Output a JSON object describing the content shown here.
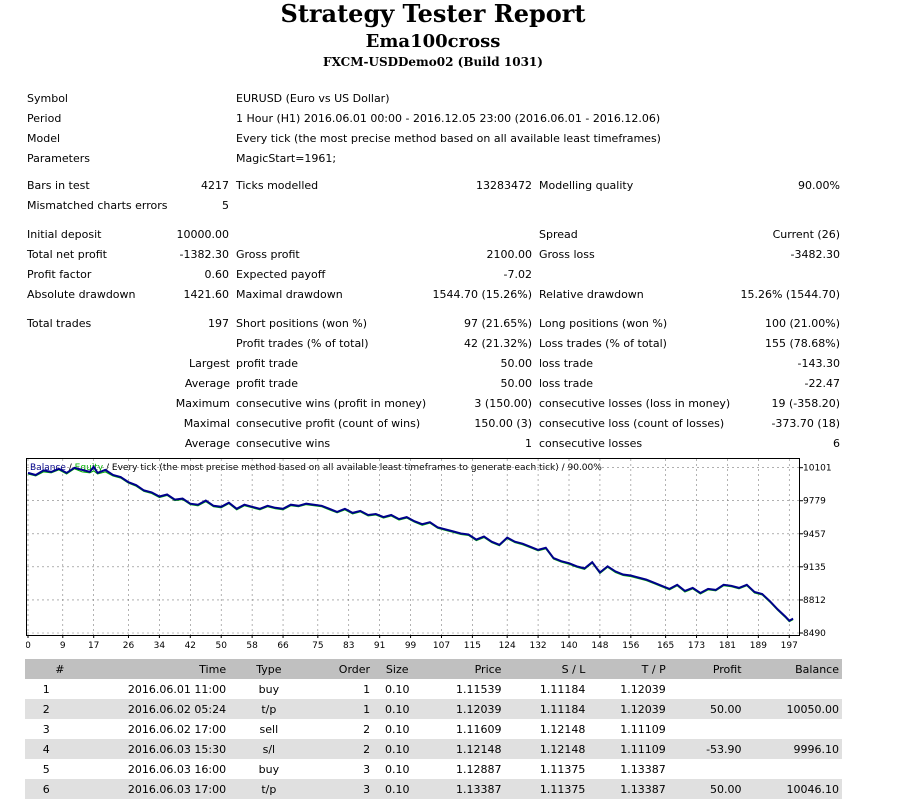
{
  "report": {
    "title": "Strategy Tester Report",
    "expert": "Ema100cross",
    "server": "FXCM-USDDemo02 (Build 1031)"
  },
  "info": [
    {
      "label": "Symbol",
      "value": "EURUSD (Euro vs US Dollar)"
    },
    {
      "label": "Period",
      "value": "1 Hour (H1) 2016.06.01 00:00 - 2016.12.05 23:00 (2016.06.01 - 2016.12.06)"
    },
    {
      "label": "Model",
      "value": "Every tick (the most precise method based on all available least timeframes)"
    },
    {
      "label": "Parameters",
      "value": "MagicStart=1961;"
    }
  ],
  "stats": {
    "bars_label": "Bars in test",
    "bars_value": "4217",
    "ticks_label": "Ticks modelled",
    "ticks_value": "13283472",
    "quality_label": "Modelling quality",
    "quality_value": "90.00%",
    "mismatch_label": "Mismatched charts errors",
    "mismatch_value": "5",
    "deposit_label": "Initial deposit",
    "deposit_value": "10000.00",
    "spread_label": "Spread",
    "spread_value": "Current (26)",
    "netprofit_label": "Total net profit",
    "netprofit_value": "-1382.30",
    "grossprofit_label": "Gross profit",
    "grossprofit_value": "2100.00",
    "grossloss_label": "Gross loss",
    "grossloss_value": "-3482.30",
    "pf_label": "Profit factor",
    "pf_value": "0.60",
    "payoff_label": "Expected payoff",
    "payoff_value": "-7.02",
    "absdd_label": "Absolute drawdown",
    "absdd_value": "1421.60",
    "maxdd_label": "Maximal drawdown",
    "maxdd_value": "1544.70 (15.26%)",
    "reldd_label": "Relative drawdown",
    "reldd_value": "15.26% (1544.70)",
    "trades_label": "Total trades",
    "trades_value": "197",
    "short_label": "Short positions (won %)",
    "short_value": "97 (21.65%)",
    "long_label": "Long positions (won %)",
    "long_value": "100 (21.00%)",
    "pt_label": "Profit trades (% of total)",
    "pt_value": "42 (21.32%)",
    "lt_label": "Loss trades (% of total)",
    "lt_value": "155 (78.68%)",
    "largest_label": "Largest",
    "largest_profit_label": "profit trade",
    "largest_profit_value": "50.00",
    "largest_loss_label": "loss trade",
    "largest_loss_value": "-143.30",
    "average_label": "Average",
    "average_profit_label": "profit trade",
    "average_profit_value": "50.00",
    "average_loss_label": "loss trade",
    "average_loss_value": "-22.47",
    "maximum_label": "Maximum",
    "max_cw_label": "consecutive wins (profit in money)",
    "max_cw_value": "3 (150.00)",
    "max_cl_label": "consecutive losses (loss in money)",
    "max_cl_value": "19 (-358.20)",
    "maximal_label": "Maximal",
    "mxl_cp_label": "consecutive profit (count of wins)",
    "mxl_cp_value": "150.00 (3)",
    "mxl_cl_label": "consecutive loss (count of losses)",
    "mxl_cl_value": "-373.70 (18)",
    "average2_label": "Average",
    "avg_cw_label": "consecutive wins",
    "avg_cw_value": "1",
    "avg_cl_label": "consecutive losses",
    "avg_cl_value": "6"
  },
  "chart_data": {
    "type": "line",
    "legend_balance": "Balance",
    "legend_sep": " / ",
    "legend_equity": "Equity",
    "legend_rest": " / Every tick (the most precise method based on all available least timeframes to generate each tick) / 90.00%",
    "colors": {
      "balance": "#00008b",
      "equity": "#00b000",
      "grid": "#808080"
    },
    "xticks": [
      "0",
      "9",
      "17",
      "26",
      "34",
      "42",
      "50",
      "58",
      "66",
      "75",
      "83",
      "91",
      "99",
      "107",
      "115",
      "124",
      "132",
      "140",
      "148",
      "156",
      "165",
      "173",
      "181",
      "189",
      "197"
    ],
    "yticks": [
      "10101",
      "9779",
      "9457",
      "9135",
      "8812",
      "8490"
    ],
    "ylim": [
      8490,
      10176
    ],
    "xlim": [
      0,
      199
    ],
    "grid": true,
    "x": [
      0,
      2,
      4,
      6,
      8,
      10,
      12,
      14,
      16,
      17,
      18,
      20,
      22,
      24,
      26,
      28,
      30,
      32,
      34,
      36,
      38,
      40,
      42,
      44,
      46,
      48,
      50,
      52,
      54,
      56,
      58,
      60,
      62,
      64,
      66,
      68,
      70,
      72,
      74,
      76,
      78,
      80,
      82,
      84,
      86,
      88,
      90,
      92,
      94,
      96,
      98,
      100,
      102,
      104,
      106,
      108,
      110,
      112,
      114,
      116,
      118,
      120,
      122,
      124,
      126,
      128,
      130,
      132,
      134,
      136,
      138,
      140,
      142,
      144,
      146,
      148,
      150,
      152,
      154,
      156,
      158,
      160,
      162,
      164,
      166,
      168,
      170,
      172,
      174,
      176,
      178,
      180,
      182,
      184,
      186,
      188,
      190,
      192,
      194,
      196,
      197,
      198
    ],
    "balance": [
      10050,
      10030,
      10075,
      10060,
      10090,
      10050,
      10100,
      10080,
      10060,
      10110,
      10050,
      10080,
      10030,
      10010,
      9960,
      9930,
      9880,
      9860,
      9820,
      9840,
      9790,
      9800,
      9750,
      9740,
      9780,
      9730,
      9720,
      9760,
      9700,
      9740,
      9720,
      9700,
      9730,
      9710,
      9700,
      9740,
      9730,
      9750,
      9740,
      9730,
      9700,
      9670,
      9700,
      9660,
      9680,
      9640,
      9650,
      9620,
      9640,
      9600,
      9620,
      9580,
      9550,
      9570,
      9520,
      9500,
      9480,
      9460,
      9450,
      9400,
      9430,
      9380,
      9350,
      9420,
      9380,
      9360,
      9330,
      9300,
      9320,
      9220,
      9190,
      9170,
      9140,
      9120,
      9180,
      9080,
      9140,
      9090,
      9060,
      9050,
      9030,
      9010,
      8980,
      8950,
      8920,
      8960,
      8900,
      8930,
      8880,
      8920,
      8910,
      8960,
      8950,
      8930,
      8960,
      8890,
      8870,
      8800,
      8720,
      8650,
      8610,
      8630
    ],
    "equity": [
      10040,
      10020,
      10060,
      10050,
      10080,
      10040,
      10090,
      10060,
      10050,
      10070,
      10040,
      10060,
      10020,
      10000,
      9950,
      9920,
      9870,
      9850,
      9810,
      9830,
      9780,
      9790,
      9740,
      9730,
      9770,
      9720,
      9710,
      9750,
      9690,
      9730,
      9710,
      9690,
      9720,
      9700,
      9690,
      9730,
      9720,
      9740,
      9730,
      9720,
      9690,
      9660,
      9690,
      9650,
      9670,
      9630,
      9640,
      9610,
      9630,
      9590,
      9610,
      9570,
      9540,
      9560,
      9510,
      9490,
      9470,
      9450,
      9440,
      9390,
      9420,
      9370,
      9340,
      9410,
      9370,
      9350,
      9320,
      9290,
      9310,
      9210,
      9180,
      9160,
      9130,
      9110,
      9170,
      9070,
      9130,
      9080,
      9050,
      9040,
      9020,
      9000,
      8970,
      8940,
      8910,
      8950,
      8890,
      8920,
      8870,
      8910,
      8900,
      8950,
      8940,
      8920,
      8950,
      8880,
      8860,
      8790,
      8710,
      8640,
      8600,
      8620
    ]
  },
  "table": {
    "headers": [
      "#",
      "Time",
      "Type",
      "Order",
      "Size",
      "Price",
      "S / L",
      "T / P",
      "Profit",
      "Balance"
    ],
    "rows": [
      [
        "1",
        "2016.06.01 11:00",
        "buy",
        "1",
        "0.10",
        "1.11539",
        "1.11184",
        "1.12039",
        "",
        ""
      ],
      [
        "2",
        "2016.06.02 05:24",
        "t/p",
        "1",
        "0.10",
        "1.12039",
        "1.11184",
        "1.12039",
        "50.00",
        "10050.00"
      ],
      [
        "3",
        "2016.06.02 17:00",
        "sell",
        "2",
        "0.10",
        "1.11609",
        "1.12148",
        "1.11109",
        "",
        ""
      ],
      [
        "4",
        "2016.06.03 15:30",
        "s/l",
        "2",
        "0.10",
        "1.12148",
        "1.12148",
        "1.11109",
        "-53.90",
        "9996.10"
      ],
      [
        "5",
        "2016.06.03 16:00",
        "buy",
        "3",
        "0.10",
        "1.12887",
        "1.11375",
        "1.13387",
        "",
        ""
      ],
      [
        "6",
        "2016.06.03 17:00",
        "t/p",
        "3",
        "0.10",
        "1.13387",
        "1.11375",
        "1.13387",
        "50.00",
        "10046.10"
      ]
    ]
  }
}
